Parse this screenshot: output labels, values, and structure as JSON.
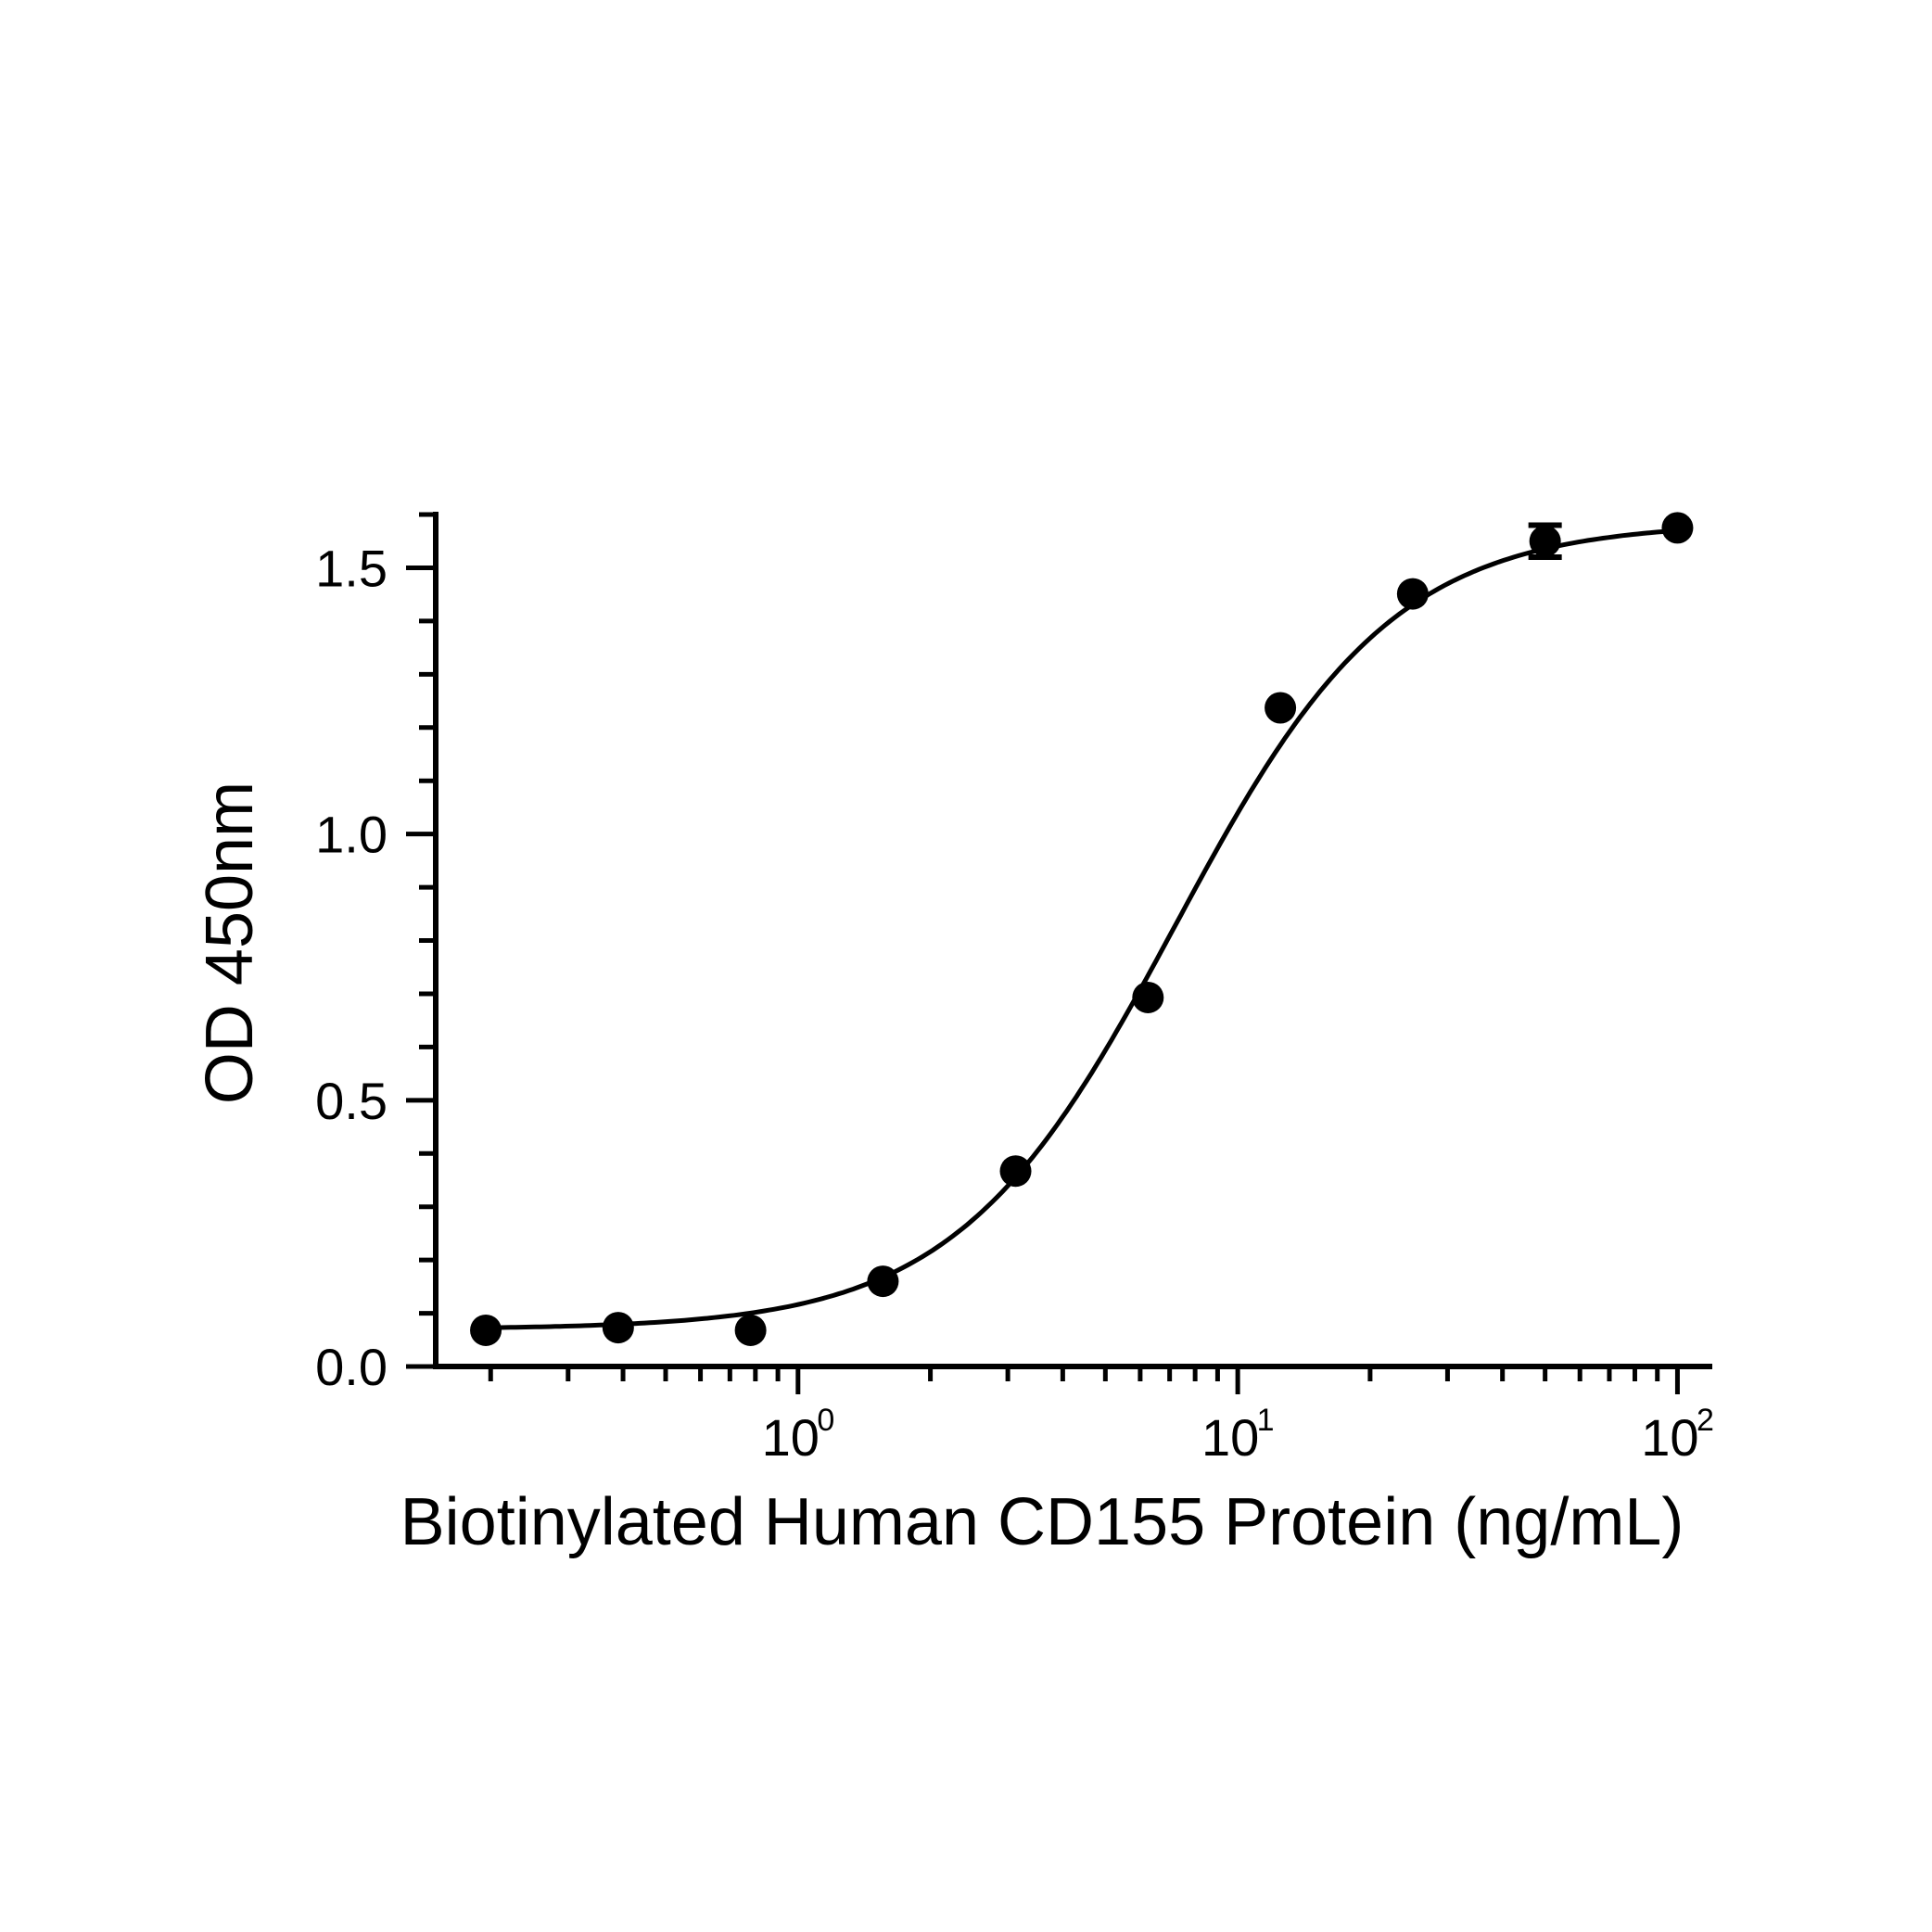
{
  "chart_data": {
    "type": "scatter",
    "xlabel": "Biotinylated Human CD155 Protein (ng/mL)",
    "ylabel": "OD 450nm",
    "x_scale": "log10",
    "xlim": [
      0.15,
      120
    ],
    "ylim": [
      0.0,
      1.6
    ],
    "x_tick_labels": [
      {
        "base": "10",
        "exp": "0",
        "value": 1
      },
      {
        "base": "10",
        "exp": "1",
        "value": 10
      },
      {
        "base": "10",
        "exp": "2",
        "value": 100
      }
    ],
    "y_tick_labels": [
      {
        "label": "0.0",
        "value": 0.0
      },
      {
        "label": "0.5",
        "value": 0.5
      },
      {
        "label": "1.0",
        "value": 1.0
      },
      {
        "label": "1.5",
        "value": 1.5
      }
    ],
    "y_minor_step": 0.1,
    "grid": false,
    "legend": "none",
    "points": [
      {
        "x": 0.195,
        "y": 0.068
      },
      {
        "x": 0.39,
        "y": 0.073
      },
      {
        "x": 0.78,
        "y": 0.068
      },
      {
        "x": 1.56,
        "y": 0.16
      },
      {
        "x": 3.125,
        "y": 0.367
      },
      {
        "x": 6.25,
        "y": 0.693
      },
      {
        "x": 12.5,
        "y": 1.237
      },
      {
        "x": 25,
        "y": 1.451
      },
      {
        "x": 50,
        "y": 1.55,
        "err": 0.03
      },
      {
        "x": 100,
        "y": 1.575
      }
    ],
    "fit": {
      "model": "4PL",
      "bottom": 0.07,
      "top": 1.585,
      "ec50": 7.2,
      "hill": 1.75,
      "x_range": [
        0.195,
        100
      ]
    },
    "colors": {
      "line": "#000000",
      "points": "#000000"
    }
  }
}
